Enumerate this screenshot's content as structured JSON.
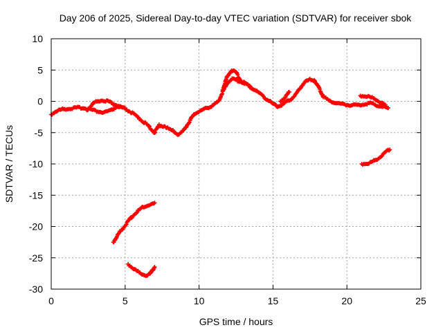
{
  "chart_data": {
    "type": "scatter",
    "title": "Day 206 of 2025, Sidereal Day-to-day VTEC variation (SDTVAR) for receiver sbok",
    "xlabel": "GPS time / hours",
    "ylabel": "SDTVAR / TECUs",
    "xlim": [
      0,
      25
    ],
    "ylim": [
      -30,
      10
    ],
    "x_ticks": [
      0,
      5,
      10,
      15,
      20,
      25
    ],
    "y_ticks": [
      -30,
      -25,
      -20,
      -15,
      -10,
      -5,
      0,
      5,
      10
    ],
    "grid": true,
    "marker": "+",
    "series_color": "#ff0000",
    "series": [
      {
        "name": "sbok main trace",
        "points": [
          [
            0.0,
            -2.1
          ],
          [
            0.3,
            -1.6
          ],
          [
            0.7,
            -1.3
          ],
          [
            1.0,
            -1.2
          ],
          [
            1.5,
            -1.1
          ],
          [
            2.0,
            -1.0
          ],
          [
            2.5,
            -1.2
          ],
          [
            3.0,
            -1.5
          ],
          [
            3.5,
            -1.8
          ],
          [
            4.0,
            -1.5
          ],
          [
            4.5,
            -0.8
          ],
          [
            5.0,
            -1.2
          ],
          [
            5.5,
            -1.9
          ],
          [
            6.0,
            -2.8
          ],
          [
            6.5,
            -3.8
          ],
          [
            7.0,
            -5.0
          ],
          [
            7.3,
            -3.8
          ],
          [
            7.7,
            -4.0
          ],
          [
            8.0,
            -4.5
          ],
          [
            8.3,
            -4.8
          ],
          [
            8.6,
            -5.3
          ],
          [
            8.9,
            -4.8
          ],
          [
            9.2,
            -3.8
          ],
          [
            9.5,
            -2.6
          ],
          [
            9.8,
            -1.8
          ],
          [
            10.1,
            -1.5
          ],
          [
            10.4,
            -1.2
          ],
          [
            10.8,
            -0.8
          ],
          [
            11.0,
            -0.5
          ],
          [
            11.3,
            -0.1
          ],
          [
            11.5,
            1.0
          ],
          [
            11.8,
            2.5
          ],
          [
            12.0,
            3.2
          ],
          [
            12.3,
            3.6
          ],
          [
            12.6,
            3.3
          ],
          [
            13.0,
            3.0
          ],
          [
            13.4,
            2.4
          ],
          [
            13.8,
            1.8
          ],
          [
            14.2,
            1.1
          ],
          [
            14.6,
            0.3
          ],
          [
            15.0,
            -0.4
          ],
          [
            15.3,
            -0.8
          ],
          [
            15.6,
            -0.6
          ],
          [
            15.9,
            -0.1
          ],
          [
            16.2,
            0.3
          ],
          [
            16.5,
            1.0
          ],
          [
            16.8,
            2.0
          ],
          [
            17.1,
            3.0
          ],
          [
            17.5,
            3.5
          ],
          [
            17.8,
            3.4
          ],
          [
            18.1,
            2.2
          ],
          [
            18.4,
            0.8
          ],
          [
            18.8,
            0.1
          ],
          [
            19.3,
            -0.3
          ],
          [
            19.8,
            -0.5
          ],
          [
            20.2,
            -0.6
          ],
          [
            20.6,
            -0.6
          ],
          [
            21.0,
            -0.5
          ],
          [
            21.5,
            -0.3
          ],
          [
            22.0,
            -0.6
          ],
          [
            22.5,
            -0.9
          ],
          [
            22.8,
            -1.1
          ]
        ]
      },
      {
        "name": "sbok upper branch",
        "points": [
          [
            2.4,
            -1.4
          ],
          [
            2.9,
            -0.2
          ],
          [
            3.4,
            0.2
          ],
          [
            3.8,
            0.0
          ],
          [
            4.3,
            -0.5
          ],
          [
            4.8,
            -1.0
          ]
        ]
      },
      {
        "name": "sbok peak branch",
        "points": [
          [
            11.6,
            1.8
          ],
          [
            11.9,
            4.0
          ],
          [
            12.2,
            5.0
          ],
          [
            12.5,
            4.6
          ],
          [
            12.8,
            3.4
          ],
          [
            13.2,
            2.8
          ],
          [
            13.6,
            2.0
          ]
        ]
      },
      {
        "name": "sbok evening branch",
        "points": [
          [
            15.5,
            0.0
          ],
          [
            15.8,
            0.6
          ],
          [
            16.1,
            1.5
          ]
        ]
      },
      {
        "name": "sbok late branch",
        "points": [
          [
            20.9,
            0.9
          ],
          [
            21.4,
            0.8
          ],
          [
            21.9,
            0.4
          ],
          [
            22.3,
            -0.2
          ],
          [
            22.6,
            -0.7
          ]
        ]
      },
      {
        "name": "sbok arc 1",
        "points": [
          [
            4.2,
            -22.5
          ],
          [
            4.6,
            -21.0
          ],
          [
            5.0,
            -19.8
          ],
          [
            5.4,
            -18.6
          ],
          [
            5.8,
            -17.6
          ],
          [
            6.2,
            -16.9
          ],
          [
            6.6,
            -16.6
          ],
          [
            7.0,
            -16.3
          ]
        ]
      },
      {
        "name": "sbok arc 2",
        "points": [
          [
            5.2,
            -26.0
          ],
          [
            5.6,
            -26.8
          ],
          [
            6.0,
            -27.4
          ],
          [
            6.4,
            -27.8
          ],
          [
            6.7,
            -27.6
          ],
          [
            7.0,
            -26.4
          ]
        ]
      },
      {
        "name": "sbok arc 3",
        "points": [
          [
            21.0,
            -10.0
          ],
          [
            21.5,
            -9.9
          ],
          [
            22.0,
            -9.3
          ],
          [
            22.5,
            -8.4
          ],
          [
            22.9,
            -7.6
          ]
        ]
      }
    ]
  }
}
